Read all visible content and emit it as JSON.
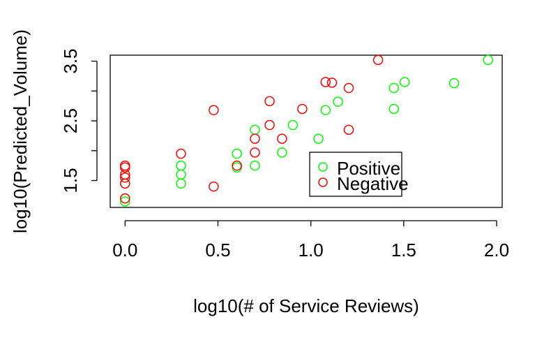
{
  "chart_data": {
    "type": "scatter",
    "title": "",
    "xlabel": "log10(# of Service Reviews)",
    "ylabel": "log10(Predicted_Volume)",
    "xlim": [
      -0.08,
      2.03
    ],
    "ylim": [
      1.05,
      3.6
    ],
    "x_ticks": [
      0.0,
      0.5,
      1.0,
      1.5,
      2.0
    ],
    "x_tick_labels": [
      "0.0",
      "0.5",
      "1.0",
      "1.5",
      "2.0"
    ],
    "y_ticks": [
      1.5,
      2.0,
      2.5,
      3.0,
      3.5
    ],
    "y_tick_labels": [
      "1.5",
      "",
      "2.5",
      "",
      "3.5"
    ],
    "grid": false,
    "legend": "inside-bottom-right",
    "marker": "open-circle",
    "series": [
      {
        "name": "Positive",
        "color": "#00ff00",
        "points": [
          [
            0.0,
            1.15
          ],
          [
            0.0,
            1.2
          ],
          [
            0.0,
            1.45
          ],
          [
            0.301,
            1.45
          ],
          [
            0.301,
            1.6
          ],
          [
            0.301,
            1.75
          ],
          [
            0.602,
            1.72
          ],
          [
            0.602,
            1.95
          ],
          [
            0.699,
            1.75
          ],
          [
            0.699,
            2.35
          ],
          [
            0.845,
            1.97
          ],
          [
            0.903,
            2.43
          ],
          [
            1.041,
            2.2
          ],
          [
            1.079,
            2.68
          ],
          [
            1.146,
            2.82
          ],
          [
            1.447,
            2.7
          ],
          [
            1.447,
            3.05
          ],
          [
            1.505,
            3.15
          ],
          [
            1.771,
            3.13
          ],
          [
            1.954,
            3.52
          ]
        ]
      },
      {
        "name": "Negative",
        "color": "#ff0000",
        "points": [
          [
            0.0,
            1.2
          ],
          [
            0.0,
            1.45
          ],
          [
            0.0,
            1.55
          ],
          [
            0.0,
            1.6
          ],
          [
            0.0,
            1.72
          ],
          [
            0.0,
            1.75
          ],
          [
            0.301,
            1.95
          ],
          [
            0.477,
            1.4
          ],
          [
            0.477,
            2.68
          ],
          [
            0.602,
            1.75
          ],
          [
            0.699,
            1.97
          ],
          [
            0.699,
            2.2
          ],
          [
            0.778,
            2.43
          ],
          [
            0.778,
            2.83
          ],
          [
            0.845,
            2.2
          ],
          [
            0.954,
            2.7
          ],
          [
            1.079,
            3.15
          ],
          [
            1.114,
            3.14
          ],
          [
            1.204,
            2.35
          ],
          [
            1.204,
            3.05
          ],
          [
            1.362,
            3.52
          ]
        ]
      }
    ]
  }
}
